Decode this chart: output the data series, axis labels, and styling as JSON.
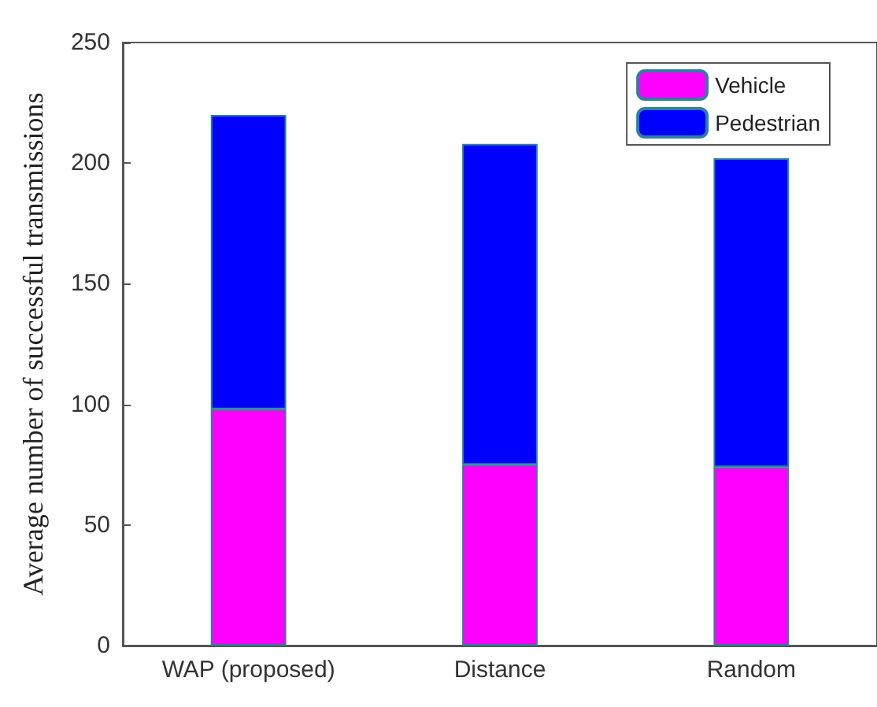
{
  "chart_data": {
    "type": "bar",
    "ylabel": "Average number of successful transmissions",
    "categories": [
      "WAP (proposed)",
      "Distance",
      "Random"
    ],
    "series": [
      {
        "name": "Vehicle",
        "color": "#ff00ff",
        "values": [
          98,
          75,
          74
        ]
      },
      {
        "name": "Pedestrian",
        "color": "#0000ff",
        "values": [
          122,
          133,
          128
        ]
      }
    ],
    "stacked": true,
    "ylim": [
      0,
      250
    ],
    "yticks": [
      0,
      50,
      100,
      150,
      200,
      250
    ],
    "grid": false,
    "legend": "top right"
  }
}
